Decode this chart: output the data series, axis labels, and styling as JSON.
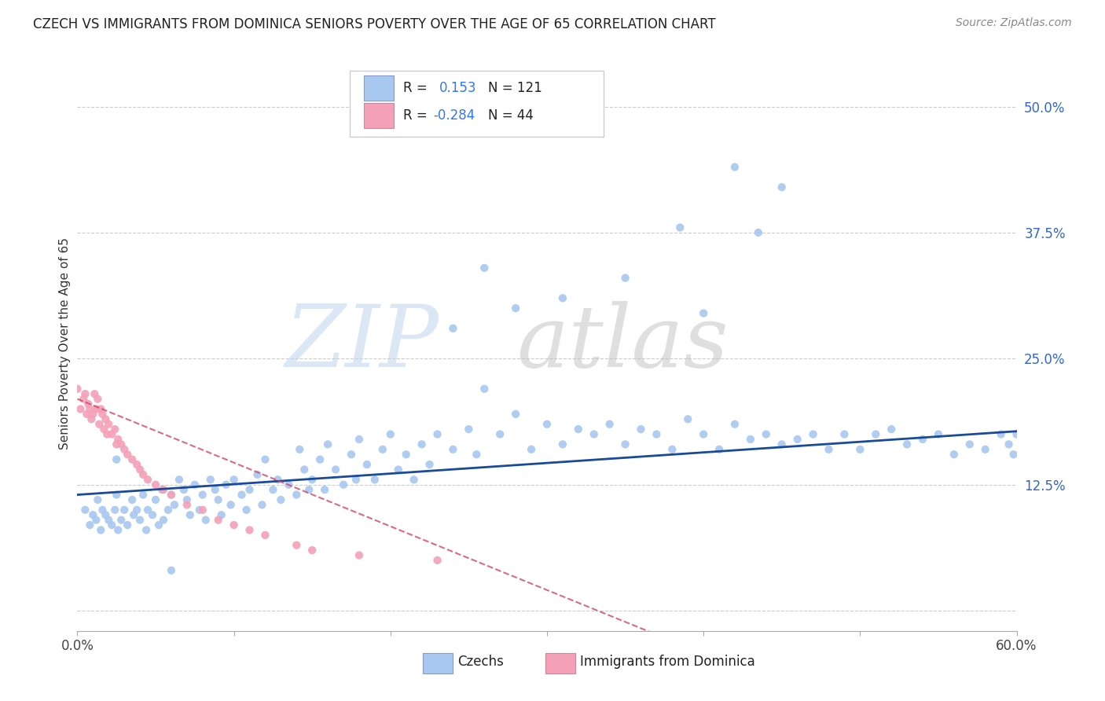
{
  "title": "CZECH VS IMMIGRANTS FROM DOMINICA SENIORS POVERTY OVER THE AGE OF 65 CORRELATION CHART",
  "source": "Source: ZipAtlas.com",
  "ylabel": "Seniors Poverty Over the Age of 65",
  "xmin": 0.0,
  "xmax": 0.6,
  "ymin": -0.02,
  "ymax": 0.55,
  "yticks": [
    0.0,
    0.125,
    0.25,
    0.375,
    0.5
  ],
  "ytick_labels": [
    "",
    "12.5%",
    "25.0%",
    "37.5%",
    "50.0%"
  ],
  "color_czech": "#a8c8f0",
  "color_dominica": "#f4a0b8",
  "line_color_czech": "#1a4a9a",
  "line_color_dominica": "#d44466",
  "czech_x": [
    0.005,
    0.008,
    0.01,
    0.012,
    0.013,
    0.015,
    0.016,
    0.018,
    0.02,
    0.022,
    0.024,
    0.025,
    0.026,
    0.028,
    0.03,
    0.032,
    0.035,
    0.036,
    0.038,
    0.04,
    0.042,
    0.044,
    0.045,
    0.048,
    0.05,
    0.052,
    0.054,
    0.055,
    0.058,
    0.06,
    0.062,
    0.065,
    0.068,
    0.07,
    0.072,
    0.075,
    0.078,
    0.08,
    0.082,
    0.085,
    0.088,
    0.09,
    0.092,
    0.095,
    0.098,
    0.1,
    0.105,
    0.108,
    0.11,
    0.115,
    0.118,
    0.12,
    0.125,
    0.128,
    0.13,
    0.135,
    0.14,
    0.142,
    0.145,
    0.148,
    0.15,
    0.155,
    0.158,
    0.16,
    0.165,
    0.17,
    0.175,
    0.178,
    0.18,
    0.185,
    0.19,
    0.195,
    0.2,
    0.205,
    0.21,
    0.215,
    0.22,
    0.225,
    0.23,
    0.24,
    0.25,
    0.255,
    0.26,
    0.27,
    0.28,
    0.29,
    0.3,
    0.31,
    0.32,
    0.33,
    0.34,
    0.35,
    0.36,
    0.37,
    0.38,
    0.39,
    0.4,
    0.41,
    0.42,
    0.43,
    0.44,
    0.45,
    0.46,
    0.47,
    0.48,
    0.49,
    0.5,
    0.51,
    0.52,
    0.53,
    0.54,
    0.55,
    0.56,
    0.57,
    0.58,
    0.59,
    0.595,
    0.598,
    0.6,
    0.025,
    0.06
  ],
  "czech_y": [
    0.1,
    0.085,
    0.095,
    0.09,
    0.11,
    0.08,
    0.1,
    0.095,
    0.09,
    0.085,
    0.1,
    0.115,
    0.08,
    0.09,
    0.1,
    0.085,
    0.11,
    0.095,
    0.1,
    0.09,
    0.115,
    0.08,
    0.1,
    0.095,
    0.11,
    0.085,
    0.12,
    0.09,
    0.1,
    0.115,
    0.105,
    0.13,
    0.12,
    0.11,
    0.095,
    0.125,
    0.1,
    0.115,
    0.09,
    0.13,
    0.12,
    0.11,
    0.095,
    0.125,
    0.105,
    0.13,
    0.115,
    0.1,
    0.12,
    0.135,
    0.105,
    0.15,
    0.12,
    0.13,
    0.11,
    0.125,
    0.115,
    0.16,
    0.14,
    0.12,
    0.13,
    0.15,
    0.12,
    0.165,
    0.14,
    0.125,
    0.155,
    0.13,
    0.17,
    0.145,
    0.13,
    0.16,
    0.175,
    0.14,
    0.155,
    0.13,
    0.165,
    0.145,
    0.175,
    0.16,
    0.18,
    0.155,
    0.22,
    0.175,
    0.195,
    0.16,
    0.185,
    0.165,
    0.18,
    0.175,
    0.185,
    0.165,
    0.18,
    0.175,
    0.16,
    0.19,
    0.175,
    0.16,
    0.185,
    0.17,
    0.175,
    0.165,
    0.17,
    0.175,
    0.16,
    0.175,
    0.16,
    0.175,
    0.18,
    0.165,
    0.17,
    0.175,
    0.155,
    0.165,
    0.16,
    0.175,
    0.165,
    0.155,
    0.175,
    0.15,
    0.04
  ],
  "czech_outliers_x": [
    0.28,
    0.35,
    0.4,
    0.42,
    0.435,
    0.45,
    0.385,
    0.31,
    0.26,
    0.24
  ],
  "czech_outliers_y": [
    0.3,
    0.33,
    0.295,
    0.44,
    0.375,
    0.42,
    0.38,
    0.31,
    0.34,
    0.28
  ],
  "dominica_x": [
    0.0,
    0.002,
    0.004,
    0.005,
    0.006,
    0.007,
    0.008,
    0.009,
    0.01,
    0.011,
    0.012,
    0.013,
    0.014,
    0.015,
    0.016,
    0.017,
    0.018,
    0.019,
    0.02,
    0.022,
    0.024,
    0.025,
    0.026,
    0.028,
    0.03,
    0.032,
    0.035,
    0.038,
    0.04,
    0.042,
    0.045,
    0.05,
    0.055,
    0.06,
    0.07,
    0.08,
    0.09,
    0.1,
    0.11,
    0.12,
    0.14,
    0.15,
    0.18,
    0.23
  ],
  "dominica_y": [
    0.22,
    0.2,
    0.21,
    0.215,
    0.195,
    0.205,
    0.2,
    0.19,
    0.195,
    0.215,
    0.2,
    0.21,
    0.185,
    0.2,
    0.195,
    0.18,
    0.19,
    0.175,
    0.185,
    0.175,
    0.18,
    0.165,
    0.17,
    0.165,
    0.16,
    0.155,
    0.15,
    0.145,
    0.14,
    0.135,
    0.13,
    0.125,
    0.12,
    0.115,
    0.105,
    0.1,
    0.09,
    0.085,
    0.08,
    0.075,
    0.065,
    0.06,
    0.055,
    0.05
  ]
}
